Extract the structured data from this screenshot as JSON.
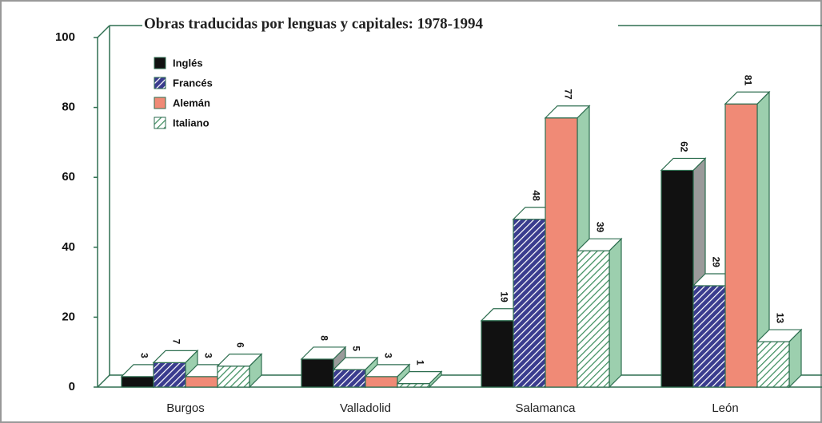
{
  "chart_data": {
    "type": "bar3d",
    "title": "Obras traducidas por lenguas y capitales: 1978-1994",
    "categories": [
      "Burgos",
      "Valladolid",
      "Salamanca",
      "León"
    ],
    "series": [
      {
        "name": "Inglés",
        "color": "#111111",
        "side": "#9a9a9a"
      },
      {
        "name": "Francés",
        "color": "#3a3c8e",
        "hatch": "#ffffff",
        "side": "#9ccfae"
      },
      {
        "name": "Alemán",
        "color": "#f08a76",
        "side": "#9ccfae"
      },
      {
        "name": "Italiano",
        "color": "#ffffff",
        "hatch": "#3f8f60",
        "side": "#9ccfae"
      }
    ],
    "values": [
      [
        3,
        7,
        3,
        6
      ],
      [
        8,
        5,
        3,
        1
      ],
      [
        19,
        48,
        77,
        39
      ],
      [
        62,
        29,
        81,
        13
      ]
    ],
    "ylim": [
      0,
      100
    ],
    "yticks": [
      0,
      20,
      40,
      60,
      80,
      100
    ],
    "legend": "upper left"
  }
}
